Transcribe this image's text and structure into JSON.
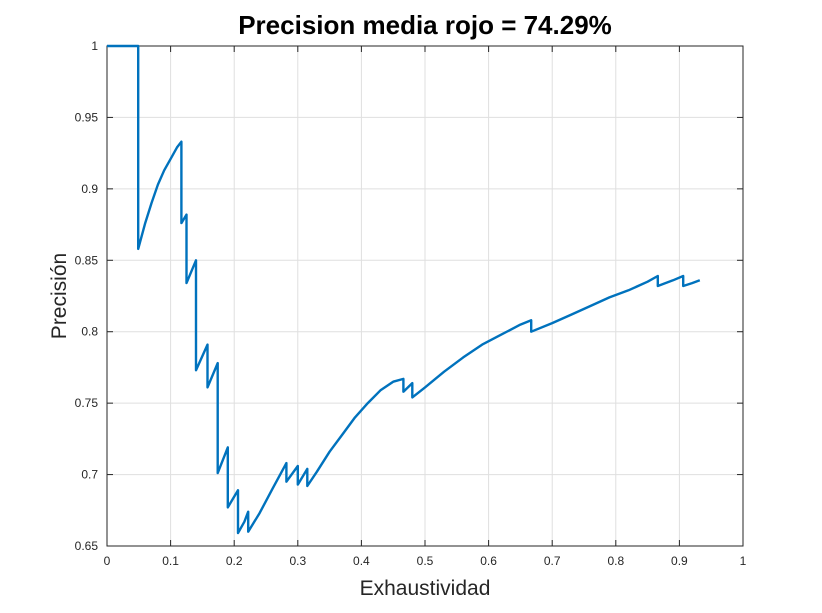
{
  "chart_data": {
    "type": "line",
    "title": "Precision media rojo = 74.29%",
    "xlabel": "Exhaustividad",
    "ylabel": "Precisión",
    "xlim": [
      0,
      1
    ],
    "ylim": [
      0.65,
      1
    ],
    "grid": true,
    "xticks": [
      0,
      0.1,
      0.2,
      0.3,
      0.4,
      0.5,
      0.6,
      0.7,
      0.8,
      0.9,
      1
    ],
    "yticks": [
      0.65,
      0.7,
      0.75,
      0.8,
      0.85,
      0.9,
      0.95,
      1
    ],
    "xtick_labels": [
      "0",
      "0.1",
      "0.2",
      "0.3",
      "0.4",
      "0.5",
      "0.6",
      "0.7",
      "0.8",
      "0.9",
      "1"
    ],
    "ytick_labels": [
      "0.65",
      "0.7",
      "0.75",
      "0.8",
      "0.85",
      "0.9",
      "0.95",
      "1"
    ],
    "colors": {
      "line": "#0072bd",
      "grid": "#dfdfdf",
      "axis": "#262626"
    },
    "series": [
      {
        "points": [
          [
            0,
            1
          ],
          [
            0.049,
            1
          ],
          [
            0.049,
            0.858
          ],
          [
            0.06,
            0.876
          ],
          [
            0.07,
            0.89
          ],
          [
            0.08,
            0.903
          ],
          [
            0.09,
            0.913
          ],
          [
            0.1,
            0.921
          ],
          [
            0.11,
            0.929
          ],
          [
            0.117,
            0.933
          ],
          [
            0.117,
            0.876
          ],
          [
            0.125,
            0.882
          ],
          [
            0.125,
            0.834
          ],
          [
            0.14,
            0.85
          ],
          [
            0.14,
            0.773
          ],
          [
            0.158,
            0.791
          ],
          [
            0.158,
            0.761
          ],
          [
            0.174,
            0.778
          ],
          [
            0.174,
            0.701
          ],
          [
            0.19,
            0.719
          ],
          [
            0.19,
            0.677
          ],
          [
            0.206,
            0.689
          ],
          [
            0.206,
            0.659
          ],
          [
            0.216,
            0.667
          ],
          [
            0.222,
            0.674
          ],
          [
            0.222,
            0.66
          ],
          [
            0.24,
            0.673
          ],
          [
            0.26,
            0.69
          ],
          [
            0.282,
            0.708
          ],
          [
            0.282,
            0.695
          ],
          [
            0.3,
            0.706
          ],
          [
            0.3,
            0.693
          ],
          [
            0.315,
            0.704
          ],
          [
            0.315,
            0.692
          ],
          [
            0.33,
            0.702
          ],
          [
            0.35,
            0.716
          ],
          [
            0.37,
            0.728
          ],
          [
            0.39,
            0.74
          ],
          [
            0.41,
            0.75
          ],
          [
            0.43,
            0.759
          ],
          [
            0.45,
            0.765
          ],
          [
            0.466,
            0.767
          ],
          [
            0.466,
            0.758
          ],
          [
            0.48,
            0.764
          ],
          [
            0.48,
            0.754
          ],
          [
            0.5,
            0.761
          ],
          [
            0.53,
            0.772
          ],
          [
            0.56,
            0.782
          ],
          [
            0.59,
            0.791
          ],
          [
            0.62,
            0.798
          ],
          [
            0.65,
            0.805
          ],
          [
            0.667,
            0.808
          ],
          [
            0.667,
            0.8
          ],
          [
            0.7,
            0.806
          ],
          [
            0.73,
            0.812
          ],
          [
            0.76,
            0.818
          ],
          [
            0.79,
            0.824
          ],
          [
            0.82,
            0.829
          ],
          [
            0.85,
            0.835
          ],
          [
            0.866,
            0.839
          ],
          [
            0.866,
            0.832
          ],
          [
            0.89,
            0.836
          ],
          [
            0.906,
            0.839
          ],
          [
            0.906,
            0.832
          ],
          [
            0.92,
            0.834
          ],
          [
            0.932,
            0.836
          ]
        ]
      }
    ]
  }
}
